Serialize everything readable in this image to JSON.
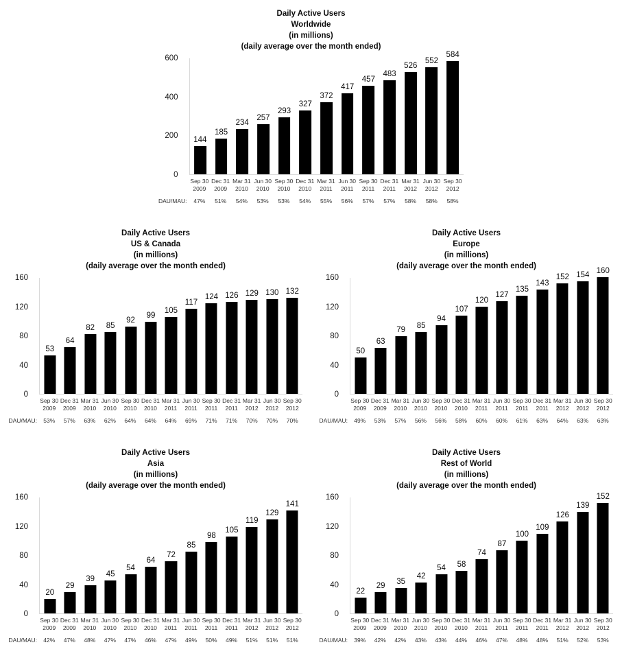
{
  "labels": {
    "dau_mau": "DAU/MAU:"
  },
  "colors": {
    "bar": "#000000",
    "axis": "#d9d9d9",
    "text": "#000000"
  },
  "chart_data": [
    {
      "type": "bar",
      "title": "Daily Active Users Worldwide (in millions) (daily average over the month ended)",
      "title_lines": [
        "Daily Active Users",
        "Worldwide",
        "(in millions)",
        "(daily average over the month ended)"
      ],
      "categories": [
        "Sep 30 2009",
        "Dec 31 2009",
        "Mar 31 2010",
        "Jun 30 2010",
        "Sep 30 2010",
        "Dec 31 2010",
        "Mar 31 2011",
        "Jun 30 2011",
        "Sep 30 2011",
        "Dec 31 2011",
        "Mar 31 2012",
        "Jun 30 2012",
        "Sep 30 2012"
      ],
      "values": [
        144,
        185,
        234,
        257,
        293,
        327,
        372,
        417,
        457,
        483,
        526,
        552,
        584
      ],
      "dau_mau": [
        "47%",
        "51%",
        "54%",
        "53%",
        "53%",
        "54%",
        "55%",
        "56%",
        "57%",
        "57%",
        "58%",
        "58%",
        "58%"
      ],
      "ylim": [
        0,
        600
      ],
      "yticks": [
        0,
        200,
        400,
        600
      ],
      "grid": false,
      "legend": false
    },
    {
      "type": "bar",
      "title": "Daily Active Users US & Canada (in millions) (daily average over the month ended)",
      "title_lines": [
        "Daily Active Users",
        "US & Canada",
        "(in millions)",
        "(daily average over the month ended)"
      ],
      "categories": [
        "Sep 30 2009",
        "Dec 31 2009",
        "Mar 31 2010",
        "Jun 30 2010",
        "Sep 30 2010",
        "Dec 31 2010",
        "Mar 31 2011",
        "Jun 30 2011",
        "Sep 30 2011",
        "Dec 31 2011",
        "Mar 31 2012",
        "Jun 30 2012",
        "Sep 30 2012"
      ],
      "values": [
        53,
        64,
        82,
        85,
        92,
        99,
        105,
        117,
        124,
        126,
        129,
        130,
        132
      ],
      "dau_mau": [
        "53%",
        "57%",
        "63%",
        "62%",
        "64%",
        "64%",
        "64%",
        "69%",
        "71%",
        "71%",
        "70%",
        "70%",
        "70%"
      ],
      "ylim": [
        0,
        160
      ],
      "yticks": [
        0,
        40,
        80,
        120,
        160
      ],
      "grid": false,
      "legend": false
    },
    {
      "type": "bar",
      "title": "Daily Active Users Europe (in millions) (daily average over the month ended)",
      "title_lines": [
        "Daily Active Users",
        "Europe",
        "(in millions)",
        "(daily average over the month ended)"
      ],
      "categories": [
        "Sep 30 2009",
        "Dec 31 2009",
        "Mar 31 2010",
        "Jun 30 2010",
        "Sep 30 2010",
        "Dec 31 2010",
        "Mar 31 2011",
        "Jun 30 2011",
        "Sep 30 2011",
        "Dec 31 2011",
        "Mar 31 2012",
        "Jun 30 2012",
        "Sep 30 2012"
      ],
      "values": [
        50,
        63,
        79,
        85,
        94,
        107,
        120,
        127,
        135,
        143,
        152,
        154,
        160
      ],
      "dau_mau": [
        "49%",
        "53%",
        "57%",
        "56%",
        "56%",
        "58%",
        "60%",
        "60%",
        "61%",
        "63%",
        "64%",
        "63%",
        "63%"
      ],
      "ylim": [
        0,
        160
      ],
      "yticks": [
        0,
        40,
        80,
        120,
        160
      ],
      "grid": false,
      "legend": false
    },
    {
      "type": "bar",
      "title": "Daily Active Users Asia (in millions) (daily average over the month ended)",
      "title_lines": [
        "Daily Active Users",
        "Asia",
        "(in millions)",
        "(daily average over the month ended)"
      ],
      "categories": [
        "Sep 30 2009",
        "Dec 31 2009",
        "Mar 31 2010",
        "Jun 30 2010",
        "Sep 30 2010",
        "Dec 31 2010",
        "Mar 31 2011",
        "Jun 30 2011",
        "Sep 30 2011",
        "Dec 31 2011",
        "Mar 31 2012",
        "Jun 30 2012",
        "Sep 30 2012"
      ],
      "values": [
        20,
        29,
        39,
        45,
        54,
        64,
        72,
        85,
        98,
        105,
        119,
        129,
        141
      ],
      "dau_mau": [
        "42%",
        "47%",
        "48%",
        "47%",
        "47%",
        "46%",
        "47%",
        "49%",
        "50%",
        "49%",
        "51%",
        "51%",
        "51%"
      ],
      "ylim": [
        0,
        160
      ],
      "yticks": [
        0,
        40,
        80,
        120,
        160
      ],
      "grid": false,
      "legend": false
    },
    {
      "type": "bar",
      "title": "Daily Active Users Rest of World (in millions) (daily average over the month ended)",
      "title_lines": [
        "Daily Active Users",
        "Rest of World",
        "(in millions)",
        "(daily average over the month ended)"
      ],
      "categories": [
        "Sep 30 2009",
        "Dec 31 2009",
        "Mar 31 2010",
        "Jun 30 2010",
        "Sep 30 2010",
        "Dec 31 2010",
        "Mar 31 2011",
        "Jun 30 2011",
        "Sep 30 2011",
        "Dec 31 2011",
        "Mar 31 2012",
        "Jun 30 2012",
        "Sep 30 2012"
      ],
      "values": [
        22,
        29,
        35,
        42,
        54,
        58,
        74,
        87,
        100,
        109,
        126,
        139,
        152
      ],
      "dau_mau": [
        "39%",
        "42%",
        "42%",
        "43%",
        "43%",
        "44%",
        "46%",
        "47%",
        "48%",
        "48%",
        "51%",
        "52%",
        "53%"
      ],
      "ylim": [
        0,
        160
      ],
      "yticks": [
        0,
        40,
        80,
        120,
        160
      ],
      "grid": false,
      "legend": false
    }
  ]
}
